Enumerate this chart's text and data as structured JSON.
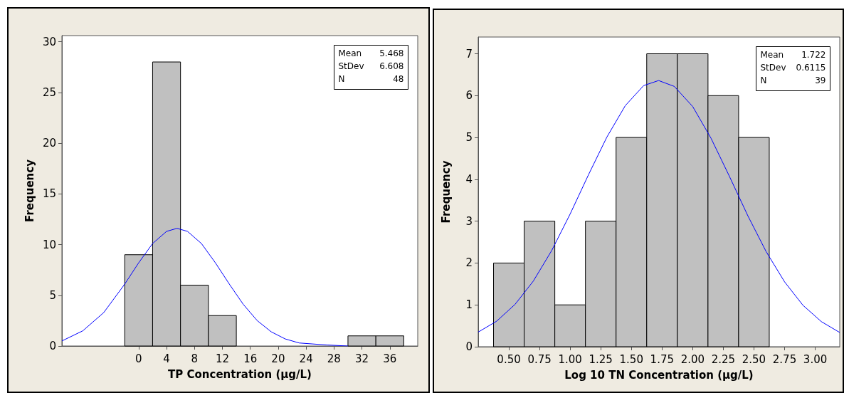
{
  "chart_data": [
    {
      "type": "histogram",
      "xlabel": "TP Concentration (µg/L)",
      "ylabel": "Frequency",
      "color": "#c0c0c0",
      "grid": false,
      "bins": [
        -2,
        2,
        6,
        10,
        14,
        18,
        22,
        26,
        30,
        34,
        38
      ],
      "values": [
        9,
        28,
        6,
        3,
        0,
        0,
        0,
        0,
        1,
        1
      ],
      "xlim": [
        -11,
        40
      ],
      "xticks": [
        0,
        4,
        8,
        12,
        16,
        20,
        24,
        28,
        32,
        36
      ],
      "ylim": [
        0,
        30.6
      ],
      "yticks": [
        0,
        5,
        10,
        15,
        20,
        25,
        30
      ],
      "annotations": [
        "Mean 5.468",
        "StDev 6.608",
        "N 48"
      ],
      "series": [
        {
          "type": "line",
          "color": "#0000ff",
          "x": [
            -11,
            -8,
            -5,
            -2,
            0,
            2,
            4,
            5.5,
            7,
            9,
            11,
            13,
            15,
            17,
            19,
            21,
            23,
            25,
            27,
            30
          ],
          "values": [
            0.5,
            1.5,
            3.3,
            6.1,
            8.2,
            10.1,
            11.3,
            11.6,
            11.3,
            10.1,
            8.2,
            6.1,
            4.1,
            2.5,
            1.4,
            0.7,
            0.3,
            0.2,
            0.1,
            0.0
          ]
        }
      ]
    },
    {
      "type": "histogram",
      "xlabel": "Log 10 TN Concentration (µg/L)",
      "ylabel": "Frequency",
      "color": "#c0c0c0",
      "grid": false,
      "bins": [
        0.375,
        0.625,
        0.875,
        1.125,
        1.375,
        1.625,
        1.875,
        2.125,
        2.375,
        2.625
      ],
      "values": [
        2,
        3,
        1,
        3,
        5,
        7,
        7,
        6,
        5
      ],
      "xlim": [
        0.25,
        3.2
      ],
      "xticks": [
        {
          "value": 0.5,
          "label": "0.50"
        },
        {
          "value": 0.75,
          "label": "0.75"
        },
        {
          "value": 1,
          "label": "1.00"
        },
        {
          "value": 1.25,
          "label": "1.25"
        },
        {
          "value": 1.5,
          "label": "1.50"
        },
        {
          "value": 1.75,
          "label": "1.75"
        },
        {
          "value": 2,
          "label": "2.00"
        },
        {
          "value": 2.25,
          "label": "2.25"
        },
        {
          "value": 2.5,
          "label": "2.50"
        },
        {
          "value": 2.75,
          "label": "2.75"
        },
        {
          "value": 3,
          "label": "3.00"
        }
      ],
      "ylim": [
        0,
        7.4
      ],
      "yticks": [
        0,
        1,
        2,
        3,
        4,
        5,
        6,
        7
      ],
      "annotations": [
        "Mean 1.722",
        "StDev 0.6115",
        "N 39"
      ],
      "series": [
        {
          "type": "line",
          "color": "#0000ff",
          "x": [
            0.25,
            0.4,
            0.55,
            0.7,
            0.85,
            1.0,
            1.15,
            1.3,
            1.45,
            1.6,
            1.722,
            1.85,
            2.0,
            2.15,
            2.3,
            2.45,
            2.6,
            2.75,
            2.9,
            3.05,
            3.2
          ],
          "values": [
            0.35,
            0.61,
            1.01,
            1.57,
            2.3,
            3.17,
            4.11,
            5.01,
            5.76,
            6.24,
            6.36,
            6.22,
            5.74,
            4.98,
            4.07,
            3.13,
            2.27,
            1.55,
            0.99,
            0.6,
            0.34
          ]
        }
      ]
    }
  ]
}
